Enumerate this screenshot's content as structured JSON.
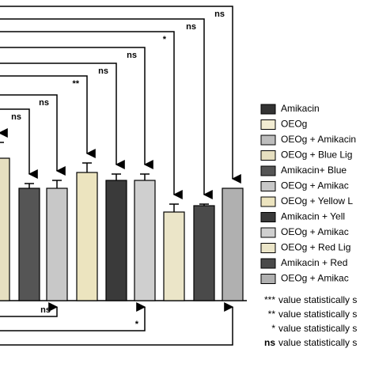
{
  "chart_data": {
    "type": "bar",
    "legend": [
      {
        "name": "Amikacin",
        "color": "#333333"
      },
      {
        "name": "OEOg",
        "color": "#f2ecd2"
      },
      {
        "name": "OEOg + Amikacin",
        "color": "#bdbdbd"
      },
      {
        "name": "OEOg + Blue Lig",
        "color": "#e6dfc0"
      },
      {
        "name": "Amikacin+ Blue",
        "color": "#555555"
      },
      {
        "name": "OEOg + Amikac",
        "color": "#c8c8c8"
      },
      {
        "name": "OEOg + Yellow L",
        "color": "#ece4bf"
      },
      {
        "name": "Amikacin + Yell",
        "color": "#3a3a3a"
      },
      {
        "name": "OEOg + Amikac",
        "color": "#cfcfcf"
      },
      {
        "name": "OEOg + Red Lig",
        "color": "#ebe5c8"
      },
      {
        "name": "Amikacin + Red",
        "color": "#4a4a4a"
      },
      {
        "name": "OEOg + Amikac",
        "color": "#b0b0b0"
      }
    ],
    "bars": [
      {
        "legend_index": 3,
        "value": 90,
        "error": 10,
        "top_label": null
      },
      {
        "legend_index": 4,
        "value": 71,
        "error": 3,
        "top_label": "ns"
      },
      {
        "legend_index": 5,
        "value": 71,
        "error": 5,
        "top_label": "ns"
      },
      {
        "legend_index": 6,
        "value": 81,
        "error": 6,
        "top_label": "**"
      },
      {
        "legend_index": 7,
        "value": 76,
        "error": 4,
        "top_label": "ns"
      },
      {
        "legend_index": 8,
        "value": 76,
        "error": 4,
        "top_label": "ns"
      },
      {
        "legend_index": 9,
        "value": 56,
        "error": 5,
        "top_label": "*"
      },
      {
        "legend_index": 10,
        "value": 60,
        "error": 1,
        "top_label": "ns"
      },
      {
        "legend_index": 11,
        "value": 71,
        "error": 0,
        "top_label": "ns"
      }
    ],
    "bottom_labels": [
      {
        "bar": 2,
        "label": "ns"
      },
      {
        "bar": 5,
        "label": "*"
      },
      {
        "bar": 8,
        "label": null
      }
    ],
    "ylim": [
      0,
      190
    ],
    "footnotes": [
      {
        "symbol": "***",
        "text": "value statistically s"
      },
      {
        "symbol": "**",
        "text": "value statistically s"
      },
      {
        "symbol": "*",
        "text": "value statistically s"
      },
      {
        "symbol": "ns",
        "text": "value statistically s"
      }
    ]
  }
}
